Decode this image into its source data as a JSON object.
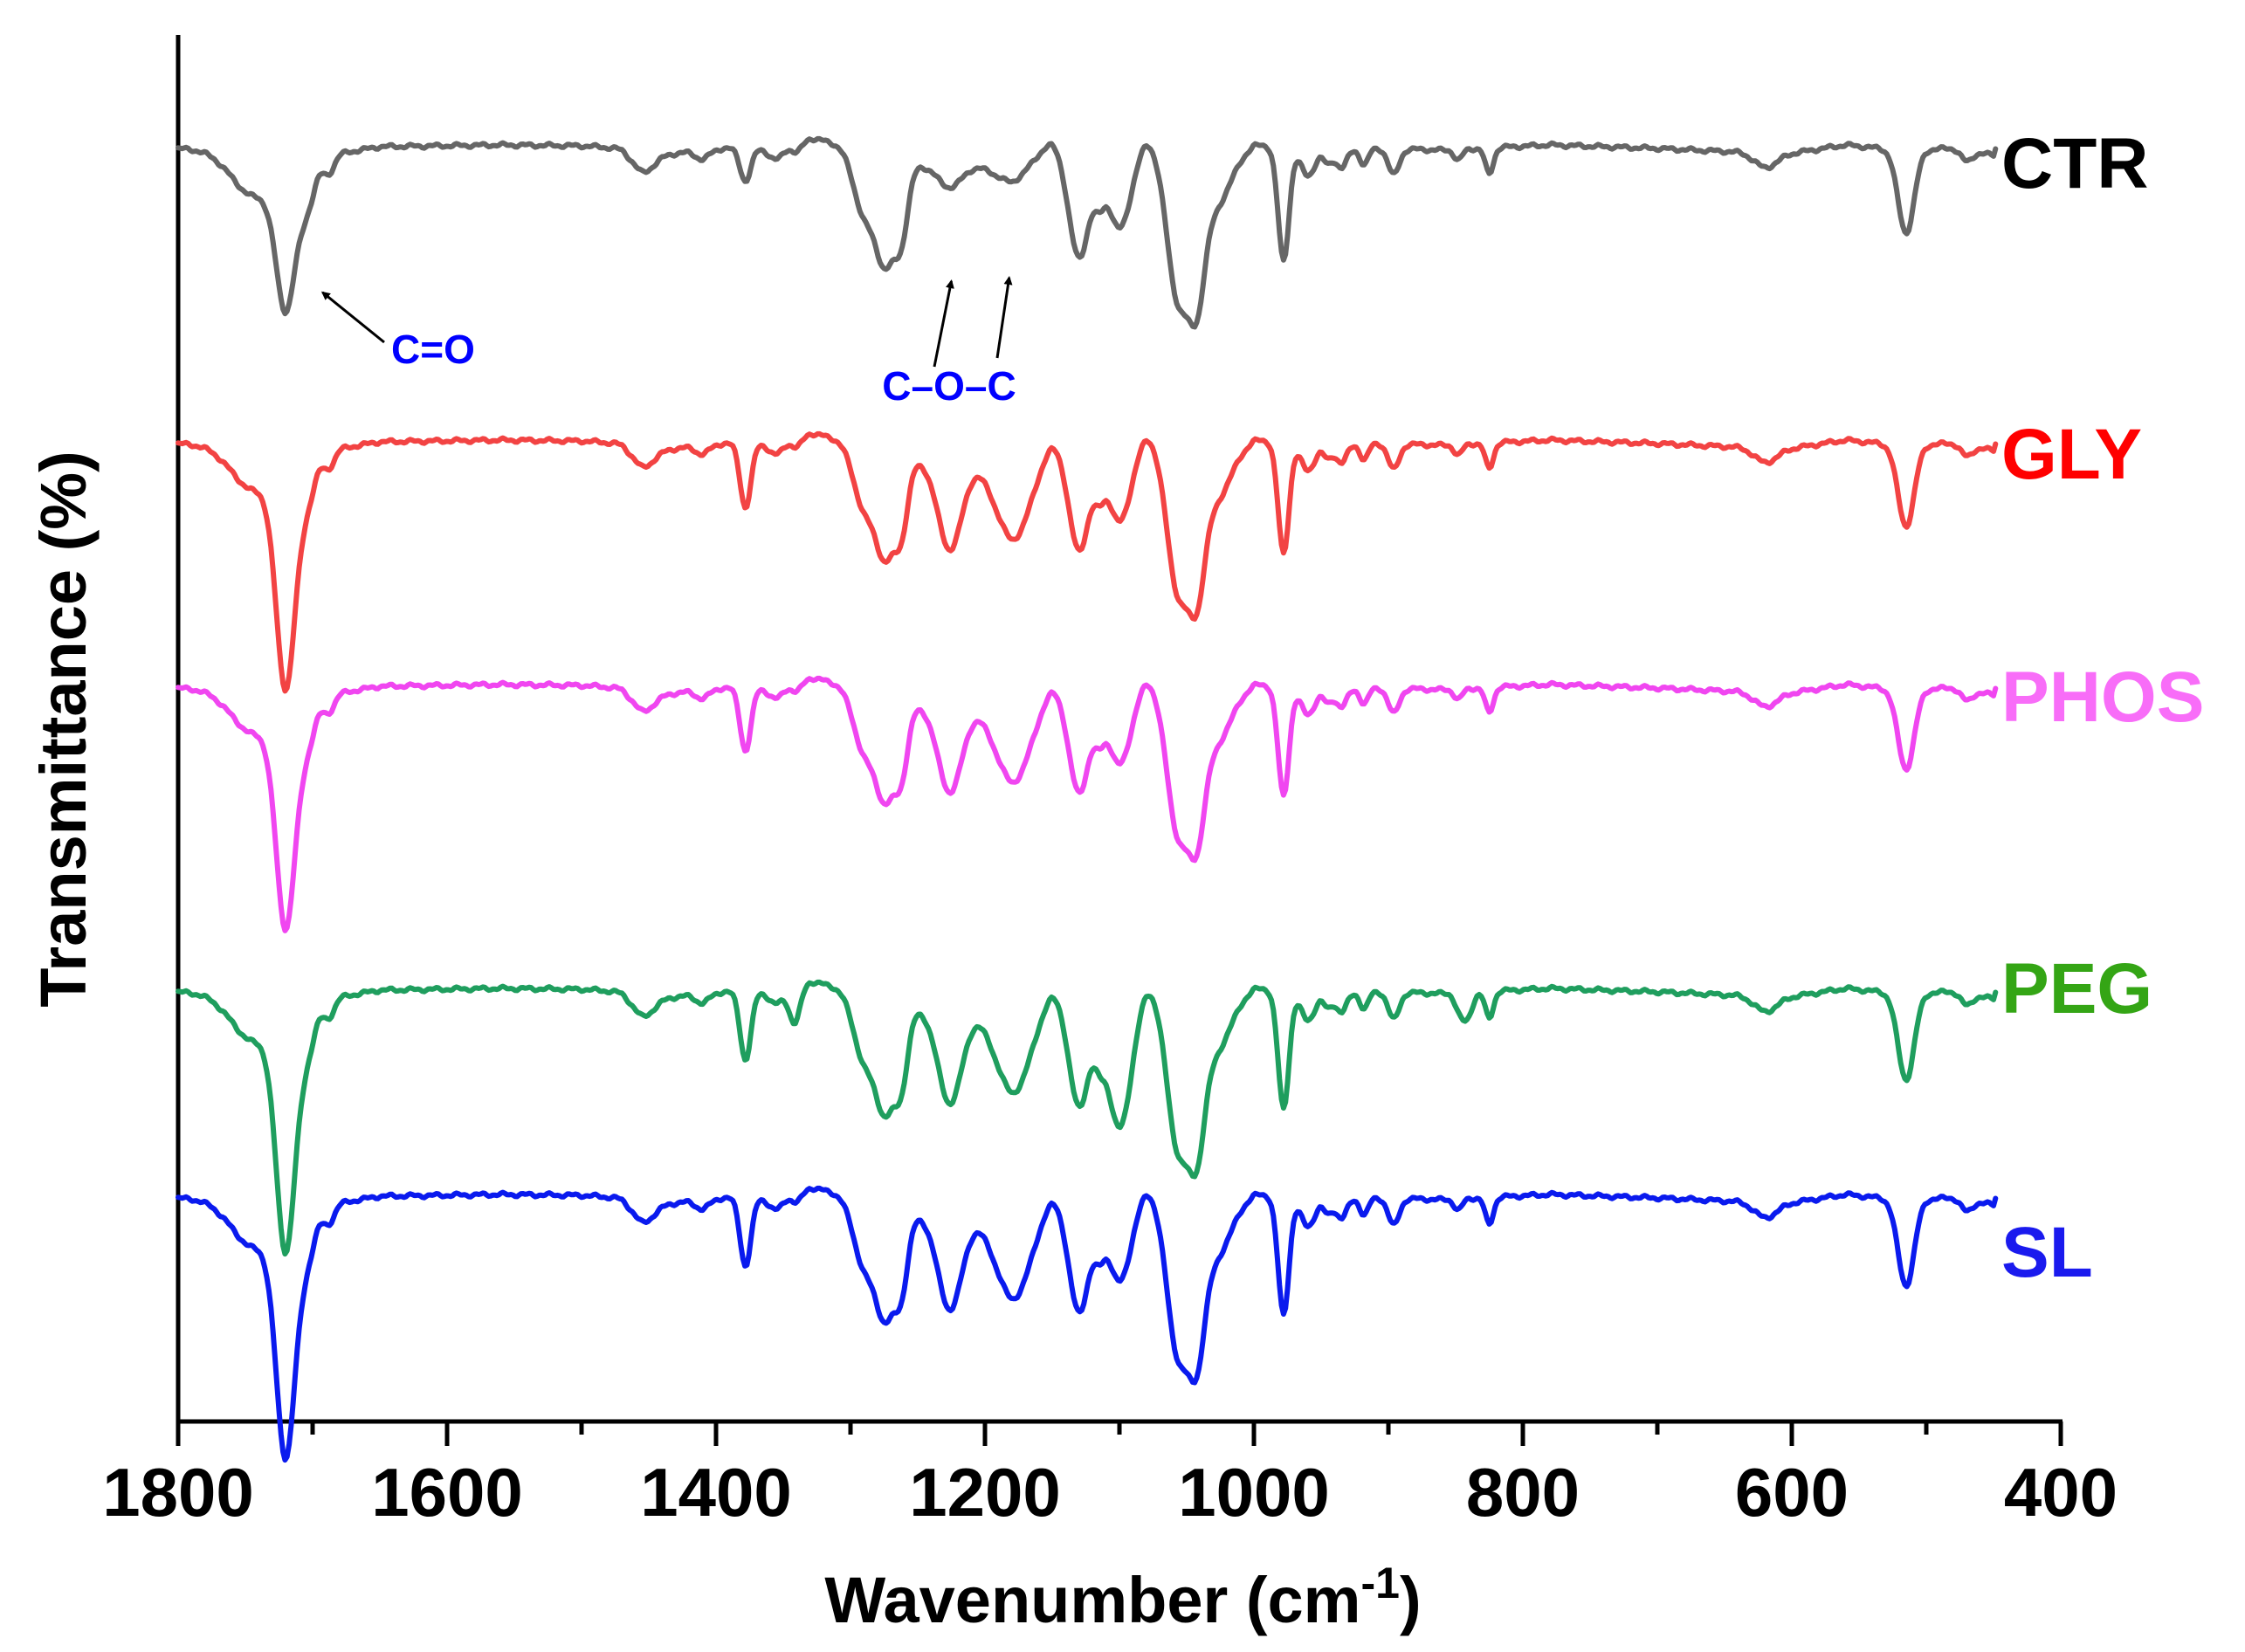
{
  "chart_data": {
    "type": "line",
    "title": "",
    "xlabel": "Wavenumber (cm",
    "xlabel_sup": "-1",
    "xlabel_close": ")",
    "ylabel": "Transmittance (%)",
    "xlim": [
      1800,
      400
    ],
    "x_ticks": [
      "1800",
      "1600",
      "1400",
      "1200",
      "1000",
      "800",
      "600",
      "400"
    ],
    "x_tick_values": [
      1800,
      1600,
      1400,
      1200,
      1000,
      800,
      600,
      400
    ],
    "y_ticks": [],
    "grid": false,
    "legend": "labels at right end of each curve",
    "series": [
      {
        "name": "CTR",
        "label": "CTR",
        "color": "#666666",
        "offset": 0
      },
      {
        "name": "GLY",
        "label": "GLY",
        "color": "#f24343",
        "offset": 0
      },
      {
        "name": "PHOS",
        "label": "PHOS",
        "color": "#f046f0",
        "offset": 0
      },
      {
        "name": "PEG",
        "label": "PEG",
        "color": "#1f9e5e",
        "offset": 0
      },
      {
        "name": "SL",
        "label": "SL",
        "color": "#0a1aee",
        "offset": 0
      }
    ],
    "label_colors": {
      "CTR": "#000000",
      "GLY": "#ff0000",
      "PHOS": "#f86df8",
      "PEG": "#34a515",
      "SL": "#1a1aee"
    },
    "annotations": [
      {
        "text": "C=O",
        "points_to_wavenumber": 1712
      },
      {
        "text": "C–O–C",
        "points_to_wavenumber": [
          1225,
          1182
        ]
      }
    ]
  }
}
